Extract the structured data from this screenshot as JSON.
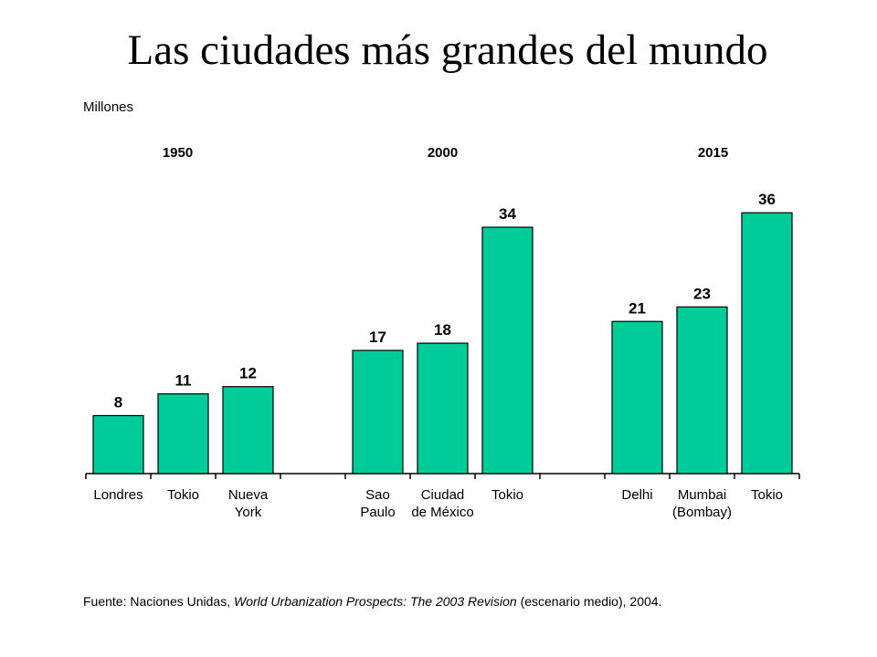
{
  "title": "Las ciudades más grandes del mundo",
  "units_label": "Millones",
  "source": {
    "prefix": "Fuente: Naciones Unidas, ",
    "italic": "World Urbanization Prospects: The 2003 Revision",
    "suffix": " (escenario medio), 2004."
  },
  "colors": {
    "bar": "#00CC99",
    "bar_stroke": "#000000",
    "axis": "#000000"
  },
  "chart_data": {
    "type": "bar",
    "ylabel": "Millones",
    "ylim": [
      0,
      38
    ],
    "grid": false,
    "groups": [
      {
        "label": "1950",
        "bars": [
          {
            "category": [
              "Londres"
            ],
            "value": 8
          },
          {
            "category": [
              "Tokio"
            ],
            "value": 11
          },
          {
            "category": [
              "Nueva",
              "York"
            ],
            "value": 12
          }
        ]
      },
      {
        "label": "2000",
        "bars": [
          {
            "category": [
              "Sao",
              "Paulo"
            ],
            "value": 17
          },
          {
            "category": [
              "Ciudad",
              "de México"
            ],
            "value": 18
          },
          {
            "category": [
              "Tokio"
            ],
            "value": 34
          }
        ]
      },
      {
        "label": "2015",
        "bars": [
          {
            "category": [
              "Delhi"
            ],
            "value": 21
          },
          {
            "category": [
              "Mumbai",
              "(Bombay)"
            ],
            "value": 23
          },
          {
            "category": [
              "Tokio"
            ],
            "value": 36
          }
        ]
      }
    ]
  }
}
